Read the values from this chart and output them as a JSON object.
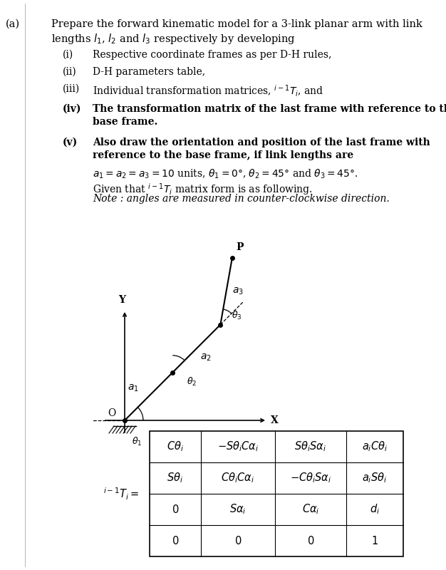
{
  "background_color": "#ffffff",
  "text_color": "#000000",
  "matrix_rows": [
    [
      "$C\\theta_i$",
      "$-S\\theta_i C\\alpha_i$",
      "$S\\theta_i S\\alpha_i$",
      "$a_i C\\theta_i$"
    ],
    [
      "$S\\theta_i$",
      "$C\\theta_i C\\alpha_i$",
      "$-C\\theta_i S\\alpha_i$",
      "$a_i S\\theta_i$"
    ],
    [
      "$0$",
      "$S\\alpha_i$",
      "$C\\alpha_i$",
      "$d_i$"
    ],
    [
      "$0$",
      "$0$",
      "$0$",
      "$1$"
    ]
  ],
  "matrix_label": "$^{i-1}T_i =$",
  "diagram": {
    "ox": 0.27,
    "oy": 0.435,
    "ang1_deg": 45,
    "ang2_deg": 45,
    "ang3_deg": 45,
    "scale": 0.13
  }
}
